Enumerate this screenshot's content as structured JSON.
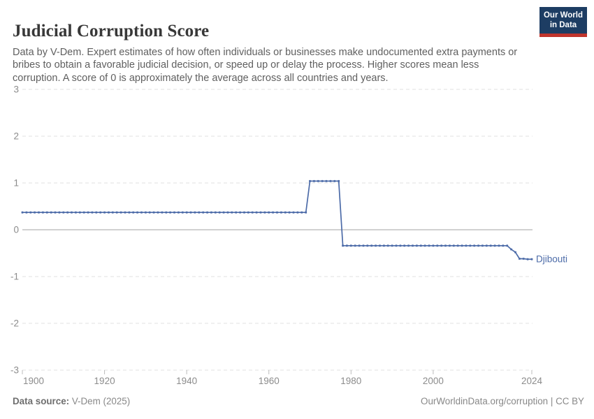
{
  "header": {
    "title": "Judicial Corruption Score",
    "subtitle": "Data by V-Dem. Expert estimates of how often individuals or businesses make undocumented extra payments or bribes to obtain a favorable judicial decision, or speed up or delay the process. Higher scores mean less corruption. A score of 0 is approximately the average across all countries and years.",
    "logo": {
      "line1": "Our World",
      "line2": "in Data",
      "bg_color": "#1d3d63",
      "accent_color": "#c0342c"
    }
  },
  "chart_data": {
    "type": "line",
    "title": "Judicial Corruption Score",
    "xlabel": "",
    "ylabel": "",
    "xlim": [
      1900,
      2024
    ],
    "ylim": [
      -3,
      3
    ],
    "yticks": [
      3,
      2,
      1,
      0,
      -1,
      -2,
      -3
    ],
    "xticks": [
      1900,
      1920,
      1940,
      1960,
      1980,
      2000,
      2024
    ],
    "grid": "horizontal dashed gridlines, solid line at 0",
    "legend_position": "label at end of line",
    "series": [
      {
        "name": "Djibouti",
        "color": "#4c6ba8",
        "points_by_segment": [
          {
            "from": 1900,
            "to": 1969,
            "value": 0.37
          },
          {
            "from": 1970,
            "to": 1977,
            "value": 1.04
          },
          {
            "from": 1978,
            "to": 2018,
            "value": -0.34
          },
          {
            "from": 2019,
            "to": 2019,
            "value": -0.42
          },
          {
            "from": 2020,
            "to": 2020,
            "value": -0.48
          },
          {
            "from": 2021,
            "to": 2022,
            "value": -0.62
          },
          {
            "from": 2023,
            "to": 2024,
            "value": -0.63
          }
        ]
      }
    ]
  },
  "colors": {
    "line": "#4c6ba8",
    "gridline": "#e0e0e0",
    "zero_line": "#a3a3a3",
    "tick_mark": "#bcbcbc",
    "tick_label": "#8c8c8c",
    "title_text": "#383838",
    "subtitle_text": "#5f5f5f",
    "footer_text": "#888888"
  },
  "footer": {
    "source_label": "Data source:",
    "source_value": "V-Dem (2025)",
    "link_text": "OurWorldinData.org/corruption",
    "separator": " | ",
    "license_text": "CC BY"
  }
}
